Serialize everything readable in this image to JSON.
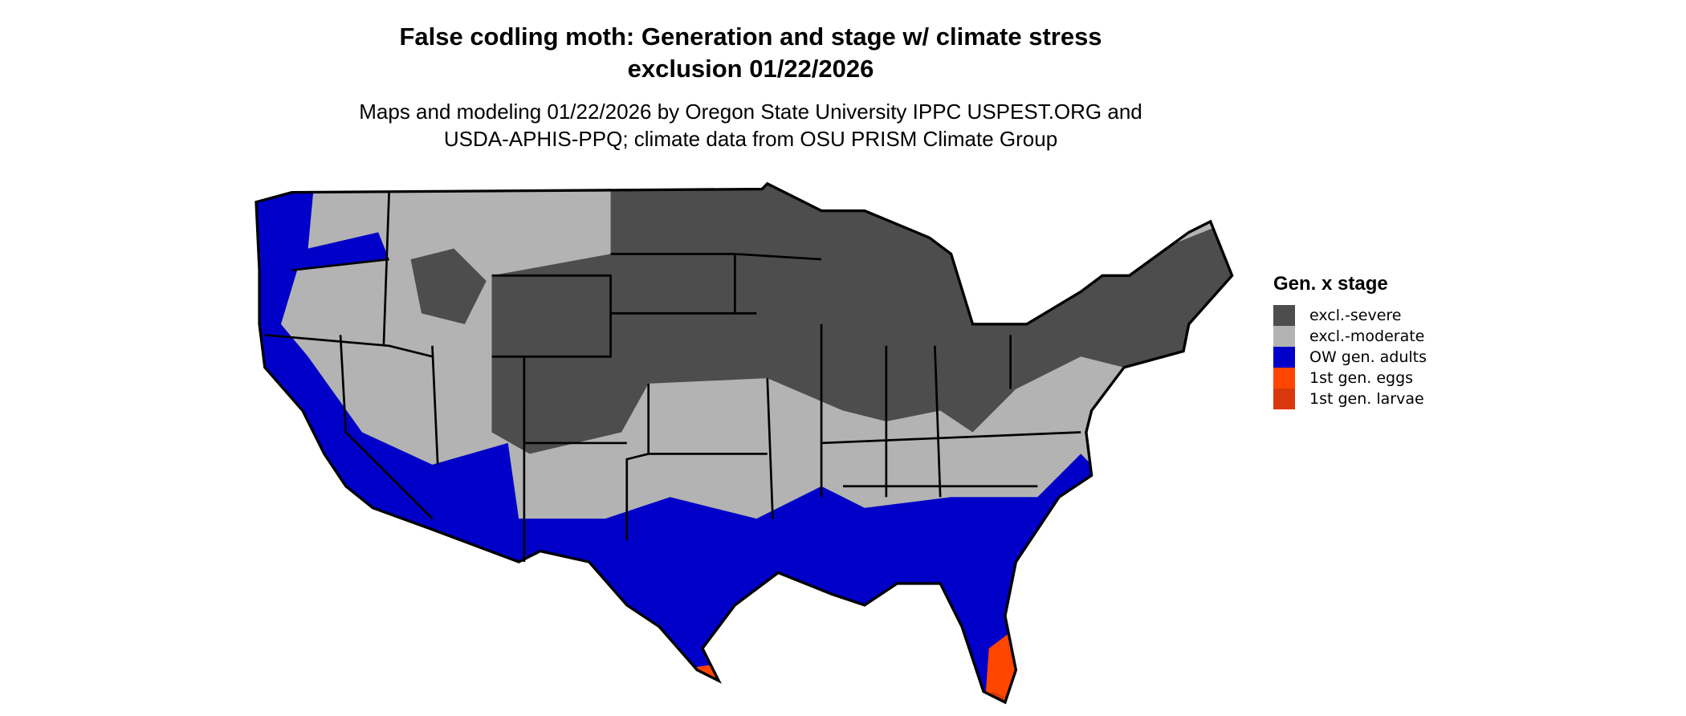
{
  "title_line1": "False codling moth: Generation and stage w/ climate stress",
  "title_line2": "exclusion 01/22/2026",
  "subtitle_line1": "Maps and modeling 01/22/2026 by Oregon State University IPPC USPEST.ORG and",
  "subtitle_line2": "USDA-APHIS-PPQ; climate data from OSU PRISM Climate Group",
  "legend": {
    "title": "Gen. x stage",
    "items": [
      {
        "label": "excl.-severe",
        "color": "#4d4d4d"
      },
      {
        "label": "excl.-moderate",
        "color": "#b3b3b3"
      },
      {
        "label": "OW gen. adults",
        "color": "#0000c8"
      },
      {
        "label": "1st gen. eggs",
        "color": "#ff4500"
      },
      {
        "label": "1st gen. larvae",
        "color": "#d9380d"
      }
    ]
  }
}
